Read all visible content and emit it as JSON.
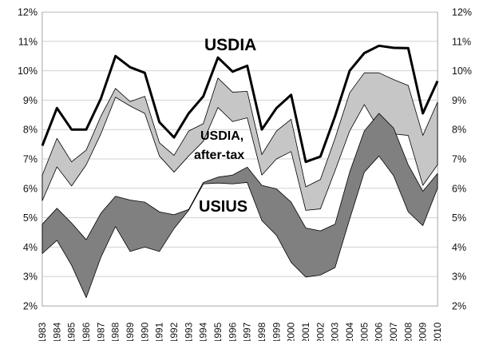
{
  "chart_data": {
    "type": "area",
    "ylim": [
      0.02,
      0.12
    ],
    "yticks": [
      "2%",
      "3%",
      "4%",
      "5%",
      "6%",
      "7%",
      "8%",
      "9%",
      "10%",
      "11%",
      "12%"
    ],
    "x": [
      1983,
      1984,
      1985,
      1986,
      1987,
      1988,
      1989,
      1990,
      1991,
      1992,
      1993,
      1994,
      1995,
      1996,
      1997,
      1998,
      1999,
      2000,
      2001,
      2002,
      2003,
      2004,
      2005,
      2006,
      2007,
      2008,
      2009,
      2010
    ],
    "xtick_labels": [
      "1983",
      "1984",
      "1985",
      "1986",
      "1987",
      "1988",
      "1989",
      "1990",
      "1991",
      "1992",
      "1993",
      "1994",
      "1995",
      "1996",
      "1997",
      "1998",
      "1999",
      "2000",
      "2001",
      "2002",
      "2003",
      "2004",
      "2005",
      "2006",
      "2007",
      "2008",
      "2009",
      "2010"
    ],
    "series_labels": {
      "usdia": "USDIA",
      "usdia_aftertax_line1": "USDIA,",
      "usdia_aftertax_line2": "after-tax",
      "usius": "USIUS"
    },
    "series": [
      {
        "id": "usdia",
        "style": "line",
        "color": "#000000",
        "values": [
          0.0745,
          0.0873,
          0.08,
          0.08,
          0.0905,
          0.105,
          0.1012,
          0.0993,
          0.0825,
          0.0773,
          0.0855,
          0.0913,
          0.1045,
          0.0997,
          0.1017,
          0.08,
          0.0873,
          0.0918,
          0.069,
          0.0708,
          0.0845,
          0.1,
          0.106,
          0.1085,
          0.1078,
          0.1077,
          0.0855,
          0.0965
        ]
      },
      {
        "id": "usdia_aftertax",
        "style": "band",
        "color": "#c6c6c6",
        "upper": [
          0.0645,
          0.077,
          0.069,
          0.073,
          0.0845,
          0.094,
          0.0895,
          0.0913,
          0.0755,
          0.0712,
          0.0795,
          0.082,
          0.0975,
          0.0927,
          0.093,
          0.0715,
          0.0795,
          0.0835,
          0.0605,
          0.063,
          0.077,
          0.0925,
          0.0993,
          0.0993,
          0.097,
          0.095,
          0.078,
          0.0893
        ],
        "lower": [
          0.0558,
          0.0673,
          0.0608,
          0.068,
          0.0785,
          0.091,
          0.088,
          0.0855,
          0.071,
          0.0655,
          0.071,
          0.076,
          0.0875,
          0.0827,
          0.084,
          0.0645,
          0.07,
          0.0725,
          0.0525,
          0.053,
          0.066,
          0.0795,
          0.0885,
          0.08,
          0.0785,
          0.078,
          0.061,
          0.068
        ]
      },
      {
        "id": "usius",
        "style": "band",
        "color": "#808080",
        "upper": [
          0.0478,
          0.0532,
          0.0482,
          0.0425,
          0.0515,
          0.0573,
          0.056,
          0.0553,
          0.052,
          0.051,
          0.0528,
          0.062,
          0.0638,
          0.0645,
          0.0672,
          0.061,
          0.0598,
          0.0553,
          0.0465,
          0.0455,
          0.0478,
          0.0655,
          0.0795,
          0.0855,
          0.0805,
          0.068,
          0.059,
          0.065
        ],
        "lower": [
          0.0378,
          0.0423,
          0.0338,
          0.0228,
          0.0365,
          0.047,
          0.0385,
          0.04,
          0.0385,
          0.0463,
          0.0525,
          0.0615,
          0.0618,
          0.0615,
          0.062,
          0.049,
          0.044,
          0.0348,
          0.0298,
          0.0305,
          0.033,
          0.0495,
          0.0655,
          0.071,
          0.0643,
          0.052,
          0.0473,
          0.06
        ]
      }
    ]
  }
}
